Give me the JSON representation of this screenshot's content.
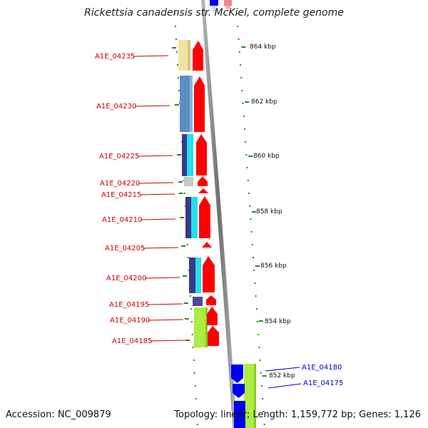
{
  "title": "Rickettsia canadensis str. McKiel, complete genome",
  "footer": {
    "accession": "Accession: NC_009879",
    "stats": "Topology: linear; Length: 1,159,772 bp; Genes: 1,126"
  },
  "scale": {
    "ticks": [
      "864 kbp",
      "862 kbp",
      "860 kbp",
      "858 kbp",
      "856 kbp",
      "854 kbp",
      "852 kbp"
    ]
  },
  "genes_left": [
    {
      "id": "A1E_04235",
      "color": "#cc0000"
    },
    {
      "id": "A1E_04230",
      "color": "#cc0000"
    },
    {
      "id": "A1E_04225",
      "color": "#cc0000"
    },
    {
      "id": "A1E_04220",
      "color": "#cc0000"
    },
    {
      "id": "A1E_04215",
      "color": "#cc0000"
    },
    {
      "id": "A1E_04210",
      "color": "#cc0000"
    },
    {
      "id": "A1E_04205",
      "color": "#cc0000"
    },
    {
      "id": "A1E_04200",
      "color": "#cc0000"
    },
    {
      "id": "A1E_04195",
      "color": "#cc0000"
    },
    {
      "id": "A1E_04190",
      "color": "#cc0000"
    },
    {
      "id": "A1E_04185",
      "color": "#cc0000"
    }
  ],
  "genes_right": [
    {
      "id": "A1E_04180",
      "color": "#0000cc"
    },
    {
      "id": "A1E_04175",
      "color": "#0000cc"
    }
  ],
  "colors": {
    "forward_arrow": "#ff0000",
    "reverse_arrow": "#0000ee",
    "backbone": "#888888",
    "tick_green": "#228b22"
  }
}
